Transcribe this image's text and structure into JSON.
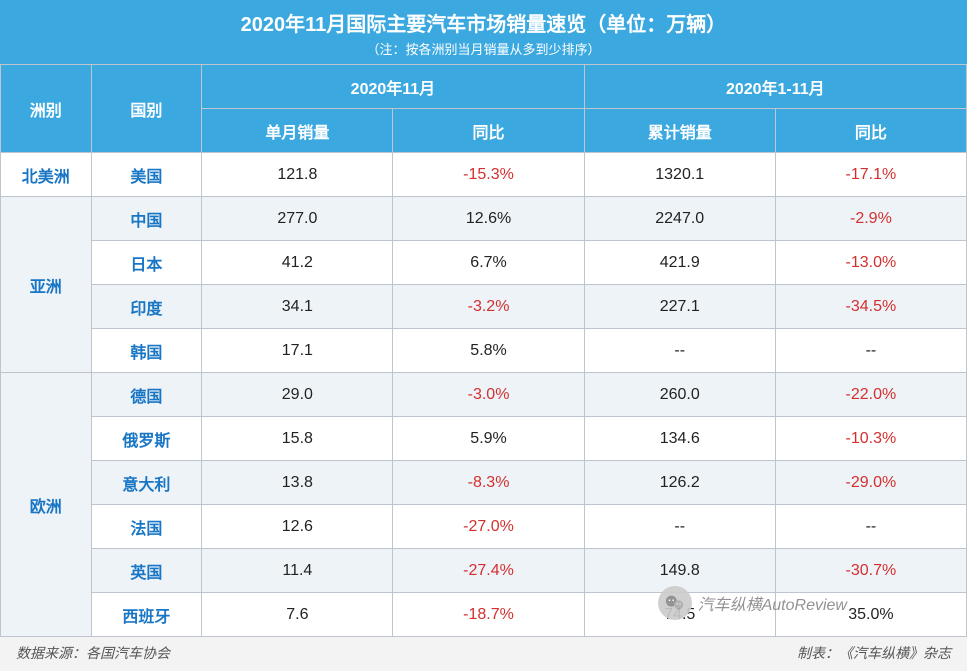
{
  "title": {
    "main": "2020年11月国际主要汽车市场销量速览（单位：万辆）",
    "sub": "（注：按各洲别当月销量从多到少排序）"
  },
  "headers": {
    "continent": "洲别",
    "country": "国别",
    "period1": "2020年11月",
    "period2": "2020年1-11月",
    "monthSales": "单月销量",
    "monthYoY": "同比",
    "cumSales": "累计销量",
    "cumYoY": "同比"
  },
  "continents": [
    {
      "name": "北美洲",
      "countries": [
        {
          "name": "美国",
          "monthSales": "121.8",
          "monthYoY": "-15.3%",
          "monthNeg": true,
          "cumSales": "1320.1",
          "cumYoY": "-17.1%",
          "cumNeg": true,
          "alt": false
        }
      ]
    },
    {
      "name": "亚洲",
      "countries": [
        {
          "name": "中国",
          "monthSales": "277.0",
          "monthYoY": "12.6%",
          "monthNeg": false,
          "cumSales": "2247.0",
          "cumYoY": "-2.9%",
          "cumNeg": true,
          "alt": true
        },
        {
          "name": "日本",
          "monthSales": "41.2",
          "monthYoY": "6.7%",
          "monthNeg": false,
          "cumSales": "421.9",
          "cumYoY": "-13.0%",
          "cumNeg": true,
          "alt": false
        },
        {
          "name": "印度",
          "monthSales": "34.1",
          "monthYoY": "-3.2%",
          "monthNeg": true,
          "cumSales": "227.1",
          "cumYoY": "-34.5%",
          "cumNeg": true,
          "alt": true
        },
        {
          "name": "韩国",
          "monthSales": "17.1",
          "monthYoY": "5.8%",
          "monthNeg": false,
          "cumSales": "--",
          "cumYoY": "--",
          "cumNeg": false,
          "alt": false
        }
      ]
    },
    {
      "name": "欧洲",
      "countries": [
        {
          "name": "德国",
          "monthSales": "29.0",
          "monthYoY": "-3.0%",
          "monthNeg": true,
          "cumSales": "260.0",
          "cumYoY": "-22.0%",
          "cumNeg": true,
          "alt": true
        },
        {
          "name": "俄罗斯",
          "monthSales": "15.8",
          "monthYoY": "5.9%",
          "monthNeg": false,
          "cumSales": "134.6",
          "cumYoY": "-10.3%",
          "cumNeg": true,
          "alt": false
        },
        {
          "name": "意大利",
          "monthSales": "13.8",
          "monthYoY": "-8.3%",
          "monthNeg": true,
          "cumSales": "126.2",
          "cumYoY": "-29.0%",
          "cumNeg": true,
          "alt": true
        },
        {
          "name": "法国",
          "monthSales": "12.6",
          "monthYoY": "-27.0%",
          "monthNeg": true,
          "cumSales": "--",
          "cumYoY": "--",
          "cumNeg": false,
          "alt": false
        },
        {
          "name": "英国",
          "monthSales": "11.4",
          "monthYoY": "-27.4%",
          "monthNeg": true,
          "cumSales": "149.8",
          "cumYoY": "-30.7%",
          "cumNeg": true,
          "alt": true
        },
        {
          "name": "西班牙",
          "monthSales": "7.6",
          "monthYoY": "-18.7%",
          "monthNeg": true,
          "cumSales": "74.5",
          "cumYoY": "35.0%",
          "cumNeg": false,
          "alt": false
        }
      ]
    }
  ],
  "footer": {
    "source": "数据来源：各国汽车协会",
    "credit": "制表：《汽车纵横》杂志"
  },
  "watermark": {
    "text": "汽车纵横AutoReview"
  },
  "colors": {
    "headerBg": "#3ba9e0",
    "headerText": "#ffffff",
    "border": "#bfc5cc",
    "linkBlue": "#1976c5",
    "negRed": "#d32f2f",
    "altRow": "#eef3f7",
    "footerBg": "#f3f3f3",
    "footerText": "#555555"
  }
}
